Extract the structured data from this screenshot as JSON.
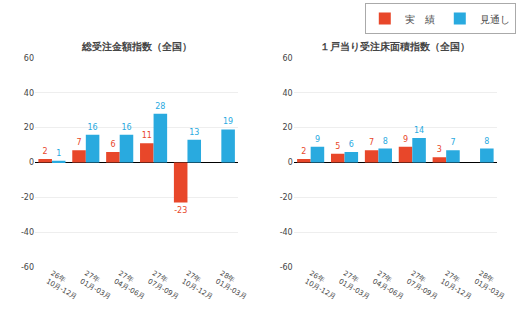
{
  "chart_data": [
    {
      "type": "bar",
      "title": "総受注金額指数（全国）",
      "categories": [
        "26年\n10月-12月",
        "27年\n01月-03月",
        "27年\n04月-06月",
        "27年\n07月-09月",
        "27年\n10月-12月",
        "28年\n01月-03月"
      ],
      "series": [
        {
          "name": "実　績",
          "color": "#e8472a",
          "values": [
            2,
            7,
            6,
            11,
            -23,
            null
          ]
        },
        {
          "name": "見通し",
          "color": "#29aadf",
          "values": [
            1,
            16,
            16,
            28,
            13,
            19
          ]
        }
      ],
      "ylim": [
        -60,
        60
      ],
      "yticks": [
        -60,
        -40,
        -20,
        0,
        20,
        40,
        60
      ],
      "grid": true,
      "data_labels": true,
      "legend": "upper right"
    },
    {
      "type": "bar",
      "title": "１戸当り受注床面積指数（全国）",
      "categories": [
        "26年\n10月-12月",
        "27年\n01月-03月",
        "27年\n04月-06月",
        "27年\n07月-09月",
        "27年\n10月-12月",
        "28年\n01月-03月"
      ],
      "series": [
        {
          "name": "実　績",
          "color": "#e8472a",
          "values": [
            2,
            5,
            7,
            9,
            3,
            null
          ]
        },
        {
          "name": "見通し",
          "color": "#29aadf",
          "values": [
            9,
            6,
            8,
            14,
            7,
            8
          ]
        }
      ],
      "ylim": [
        -60,
        60
      ],
      "yticks": [
        -60,
        -40,
        -20,
        0,
        20,
        40,
        60
      ],
      "grid": true,
      "data_labels": true,
      "legend": "upper right"
    }
  ]
}
